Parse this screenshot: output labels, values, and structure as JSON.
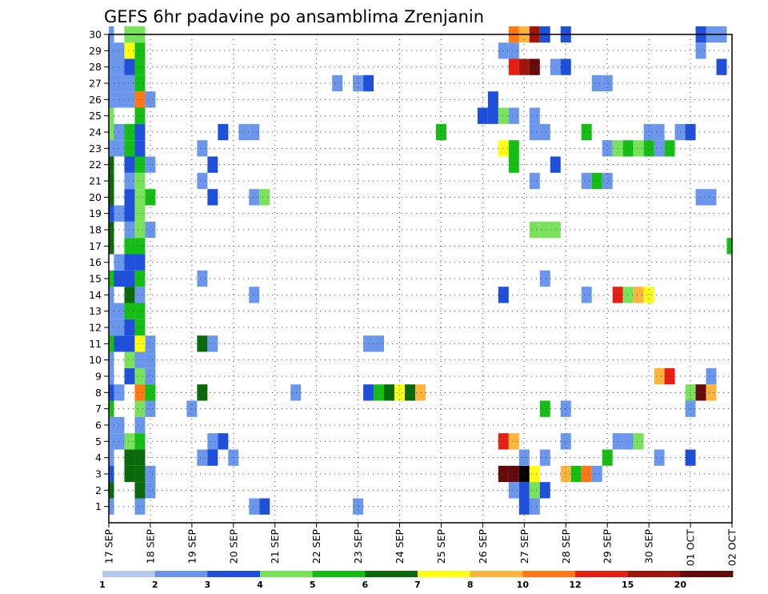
{
  "title": "GEFS 6hr padavine po ansamblima Zrenjanin",
  "chart_data": {
    "type": "heatmap",
    "title": "GEFS 6hr padavine po ansamblima Zrenjanin",
    "x_tick_labels": [
      "17 SEP",
      "18 SEP",
      "19 SEP",
      "20 SEP",
      "21 SEP",
      "22 SEP",
      "23 SEP",
      "24 SEP",
      "25 SEP",
      "26 SEP",
      "27 SEP",
      "28 SEP",
      "29 SEP",
      "30 SEP",
      "01 OCT",
      "02 OCT"
    ],
    "y_tick_labels": [
      "1",
      "2",
      "3",
      "4",
      "5",
      "6",
      "7",
      "8",
      "9",
      "10",
      "11",
      "12",
      "13",
      "14",
      "15",
      "16",
      "17",
      "18",
      "19",
      "20",
      "21",
      "22",
      "23",
      "24",
      "25",
      "26",
      "27",
      "28",
      "29",
      "30"
    ],
    "y_range": [
      0,
      30
    ],
    "x_steps": 61,
    "steps_per_day": 4,
    "grid": "dotted",
    "legend_position": "bottom",
    "colorbar": {
      "labels": [
        "1",
        "2",
        "3",
        "4",
        "5",
        "6",
        "7",
        "8",
        "10",
        "12",
        "15",
        "20"
      ],
      "colors": [
        "#b4c8f0",
        "#6a96ec",
        "#1e50dc",
        "#78e25a",
        "#14be14",
        "#0a6a0a",
        "#ffff14",
        "#ffb43c",
        "#ff7814",
        "#e61e14",
        "#a0140a",
        "#640a0a"
      ]
    },
    "cells": [
      [
        0,
        0,
        1
      ],
      [
        0,
        3,
        1
      ],
      [
        0,
        4,
        1
      ],
      [
        0,
        5,
        1
      ],
      [
        0,
        11,
        1
      ],
      [
        0,
        12,
        1
      ],
      [
        0,
        13,
        1
      ],
      [
        0,
        27,
        1
      ],
      [
        0,
        28,
        1
      ],
      [
        0,
        29,
        1
      ],
      [
        0,
        1,
        5
      ],
      [
        0,
        2,
        2
      ],
      [
        0,
        6,
        4
      ],
      [
        0,
        7,
        2
      ],
      [
        0,
        8,
        1
      ],
      [
        0,
        9,
        1
      ],
      [
        0,
        10,
        4
      ],
      [
        0,
        14,
        4
      ],
      [
        0,
        16,
        5
      ],
      [
        0,
        17,
        5
      ],
      [
        0,
        18,
        2
      ],
      [
        0,
        19,
        5
      ],
      [
        0,
        20,
        5
      ],
      [
        0,
        21,
        5
      ],
      [
        0,
        22,
        1
      ],
      [
        0,
        23,
        3
      ],
      [
        0,
        24,
        3
      ],
      [
        0,
        25,
        1
      ],
      [
        0,
        26,
        1
      ],
      [
        1,
        4,
        1
      ],
      [
        1,
        5,
        1
      ],
      [
        1,
        7,
        1
      ],
      [
        1,
        10,
        2
      ],
      [
        1,
        11,
        1
      ],
      [
        1,
        12,
        1
      ],
      [
        1,
        14,
        2
      ],
      [
        1,
        15,
        1
      ],
      [
        1,
        18,
        1
      ],
      [
        1,
        22,
        1
      ],
      [
        1,
        23,
        1
      ],
      [
        1,
        25,
        1
      ],
      [
        1,
        26,
        1
      ],
      [
        1,
        27,
        1
      ],
      [
        1,
        28,
        1
      ],
      [
        2,
        2,
        5
      ],
      [
        2,
        3,
        5
      ],
      [
        2,
        4,
        3
      ],
      [
        2,
        8,
        2
      ],
      [
        2,
        9,
        3
      ],
      [
        2,
        10,
        2
      ],
      [
        2,
        11,
        2
      ],
      [
        2,
        12,
        4
      ],
      [
        2,
        13,
        5
      ],
      [
        2,
        14,
        2
      ],
      [
        2,
        15,
        2
      ],
      [
        2,
        16,
        4
      ],
      [
        2,
        17,
        1
      ],
      [
        2,
        18,
        2
      ],
      [
        2,
        19,
        2
      ],
      [
        2,
        20,
        1
      ],
      [
        2,
        21,
        2
      ],
      [
        2,
        22,
        4
      ],
      [
        2,
        23,
        4
      ],
      [
        2,
        25,
        1
      ],
      [
        2,
        26,
        1
      ],
      [
        2,
        27,
        2
      ],
      [
        2,
        28,
        6
      ],
      [
        2,
        29,
        3
      ],
      [
        3,
        0,
        1
      ],
      [
        3,
        1,
        5
      ],
      [
        3,
        2,
        5
      ],
      [
        3,
        3,
        5
      ],
      [
        3,
        4,
        4
      ],
      [
        3,
        5,
        1
      ],
      [
        3,
        6,
        3
      ],
      [
        3,
        7,
        8
      ],
      [
        3,
        8,
        3
      ],
      [
        3,
        9,
        1
      ],
      [
        3,
        10,
        6
      ],
      [
        3,
        11,
        4
      ],
      [
        3,
        12,
        4
      ],
      [
        3,
        13,
        1
      ],
      [
        3,
        14,
        4
      ],
      [
        3,
        15,
        2
      ],
      [
        3,
        16,
        4
      ],
      [
        3,
        17,
        3
      ],
      [
        3,
        18,
        3
      ],
      [
        3,
        19,
        3
      ],
      [
        3,
        20,
        3
      ],
      [
        3,
        21,
        4
      ],
      [
        3,
        22,
        2
      ],
      [
        3,
        23,
        2
      ],
      [
        3,
        24,
        4
      ],
      [
        3,
        25,
        8
      ],
      [
        3,
        26,
        4
      ],
      [
        3,
        27,
        4
      ],
      [
        3,
        28,
        4
      ],
      [
        3,
        29,
        3
      ],
      [
        4,
        1,
        1
      ],
      [
        4,
        2,
        1
      ],
      [
        4,
        6,
        1
      ],
      [
        4,
        7,
        4
      ],
      [
        4,
        8,
        1
      ],
      [
        4,
        9,
        1
      ],
      [
        4,
        10,
        1
      ],
      [
        4,
        17,
        1
      ],
      [
        4,
        19,
        4
      ],
      [
        4,
        21,
        1
      ],
      [
        4,
        25,
        1
      ],
      [
        8,
        6,
        1
      ],
      [
        9,
        3,
        1
      ],
      [
        9,
        7,
        5
      ],
      [
        9,
        10,
        5
      ],
      [
        9,
        14,
        1
      ],
      [
        9,
        20,
        1
      ],
      [
        9,
        22,
        1
      ],
      [
        10,
        3,
        2
      ],
      [
        10,
        4,
        1
      ],
      [
        10,
        10,
        1
      ],
      [
        10,
        19,
        2
      ],
      [
        10,
        21,
        2
      ],
      [
        11,
        4,
        2
      ],
      [
        11,
        23,
        2
      ],
      [
        12,
        3,
        1
      ],
      [
        13,
        23,
        1
      ],
      [
        14,
        0,
        1
      ],
      [
        14,
        13,
        1
      ],
      [
        14,
        19,
        1
      ],
      [
        14,
        23,
        1
      ],
      [
        15,
        0,
        2
      ],
      [
        15,
        19,
        3
      ],
      [
        18,
        7,
        1
      ],
      [
        22,
        26,
        1
      ],
      [
        24,
        0,
        1
      ],
      [
        24,
        26,
        1
      ],
      [
        25,
        26,
        2
      ],
      [
        25,
        10,
        1
      ],
      [
        26,
        10,
        1
      ],
      [
        25,
        7,
        2
      ],
      [
        26,
        7,
        4
      ],
      [
        27,
        7,
        5
      ],
      [
        28,
        7,
        6
      ],
      [
        29,
        7,
        5
      ],
      [
        30,
        7,
        7
      ],
      [
        32,
        23,
        4
      ],
      [
        36,
        24,
        2
      ],
      [
        37,
        24,
        2
      ],
      [
        38,
        24,
        3
      ],
      [
        39,
        24,
        1
      ],
      [
        37,
        25,
        2
      ],
      [
        38,
        28,
        1
      ],
      [
        39,
        28,
        1
      ],
      [
        38,
        4,
        9
      ],
      [
        39,
        4,
        7
      ],
      [
        38,
        2,
        11
      ],
      [
        39,
        2,
        11
      ],
      [
        39,
        1,
        1
      ],
      [
        38,
        13,
        2
      ],
      [
        38,
        22,
        6
      ],
      [
        39,
        22,
        4
      ],
      [
        39,
        21,
        4
      ],
      [
        39,
        29,
        8
      ],
      [
        40,
        29,
        7
      ],
      [
        41,
        29,
        10
      ],
      [
        42,
        29,
        2
      ],
      [
        44,
        29,
        2
      ],
      [
        39,
        27,
        9
      ],
      [
        40,
        27,
        10
      ],
      [
        41,
        27,
        11
      ],
      [
        40,
        0,
        2
      ],
      [
        41,
        0,
        1
      ],
      [
        40,
        1,
        2
      ],
      [
        41,
        1,
        3
      ],
      [
        42,
        1,
        2
      ],
      [
        40,
        2,
        12
      ],
      [
        41,
        2,
        6
      ],
      [
        40,
        3,
        1
      ],
      [
        42,
        3,
        1
      ],
      [
        41,
        23,
        1
      ],
      [
        42,
        23,
        1
      ],
      [
        41,
        24,
        1
      ],
      [
        41,
        20,
        1
      ],
      [
        42,
        14,
        1
      ],
      [
        41,
        17,
        3
      ],
      [
        42,
        17,
        3
      ],
      [
        43,
        17,
        3
      ],
      [
        42,
        6,
        4
      ],
      [
        43,
        21,
        2
      ],
      [
        43,
        27,
        1
      ],
      [
        44,
        27,
        2
      ],
      [
        44,
        2,
        7
      ],
      [
        45,
        2,
        4
      ],
      [
        46,
        2,
        8
      ],
      [
        47,
        2,
        1
      ],
      [
        44,
        6,
        1
      ],
      [
        44,
        4,
        1
      ],
      [
        46,
        13,
        1
      ],
      [
        46,
        23,
        4
      ],
      [
        46,
        20,
        1
      ],
      [
        47,
        20,
        4
      ],
      [
        48,
        20,
        1
      ],
      [
        47,
        26,
        1
      ],
      [
        48,
        26,
        1
      ],
      [
        48,
        3,
        4
      ],
      [
        48,
        22,
        1
      ],
      [
        49,
        22,
        3
      ],
      [
        50,
        22,
        4
      ],
      [
        51,
        22,
        3
      ],
      [
        52,
        22,
        4
      ],
      [
        53,
        22,
        1
      ],
      [
        54,
        22,
        4
      ],
      [
        49,
        13,
        9
      ],
      [
        50,
        13,
        3
      ],
      [
        51,
        13,
        7
      ],
      [
        52,
        13,
        6
      ],
      [
        49,
        4,
        1
      ],
      [
        50,
        4,
        1
      ],
      [
        51,
        4,
        3
      ],
      [
        53,
        3,
        1
      ],
      [
        52,
        23,
        1
      ],
      [
        53,
        23,
        1
      ],
      [
        55,
        23,
        1
      ],
      [
        56,
        23,
        2
      ],
      [
        53,
        8,
        7
      ],
      [
        54,
        8,
        9
      ],
      [
        56,
        7,
        3
      ],
      [
        57,
        7,
        11
      ],
      [
        58,
        7,
        7
      ],
      [
        56,
        6,
        1
      ],
      [
        56,
        3,
        2
      ],
      [
        58,
        8,
        1
      ],
      [
        57,
        19,
        1
      ],
      [
        58,
        19,
        1
      ],
      [
        57,
        28,
        1
      ],
      [
        57,
        29,
        2
      ],
      [
        58,
        29,
        1
      ],
      [
        59,
        29,
        1
      ],
      [
        59,
        27,
        2
      ],
      [
        60,
        16,
        4
      ]
    ]
  }
}
